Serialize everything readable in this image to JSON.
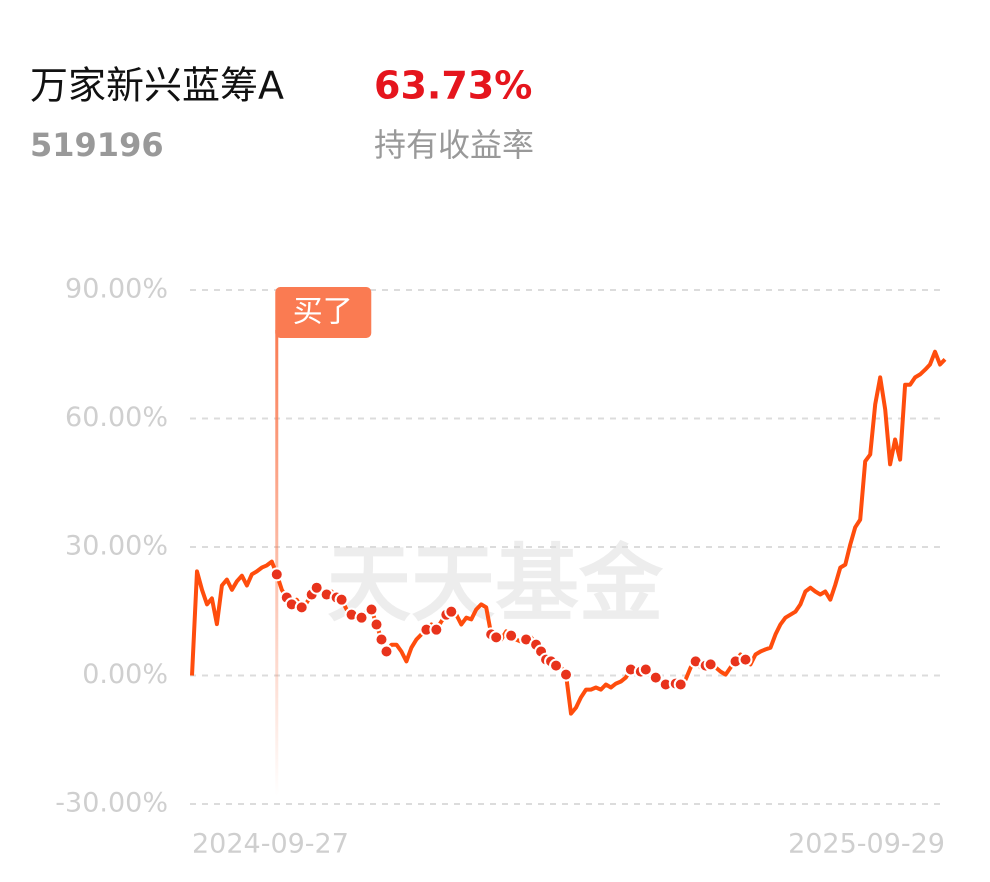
{
  "header": {
    "fund_name": "万家新兴蓝筹A",
    "return_value": "63.73%",
    "fund_code": "519196",
    "return_label": "持有收益率"
  },
  "chart_data": {
    "type": "line",
    "watermark": "天天基金",
    "categories": [
      "2024-09-27",
      null,
      null,
      null,
      null,
      null,
      null,
      null,
      null,
      null,
      null,
      null,
      null,
      null,
      null,
      null,
      null,
      null,
      null,
      null,
      null,
      null,
      null,
      null,
      null,
      null,
      null,
      null,
      null,
      null,
      null,
      null,
      null,
      null,
      null,
      null,
      null,
      null,
      null,
      null,
      null,
      null,
      null,
      null,
      null,
      null,
      null,
      null,
      null,
      null,
      null,
      null,
      null,
      null,
      null,
      null,
      null,
      null,
      null,
      null,
      null,
      null,
      null,
      null,
      null,
      null,
      null,
      null,
      null,
      null,
      null,
      null,
      null,
      null,
      null,
      null,
      null,
      null,
      null,
      null,
      null,
      null,
      null,
      null,
      null,
      null,
      null,
      null,
      null,
      null,
      null,
      null,
      null,
      null,
      null,
      null,
      null,
      null,
      null,
      null,
      null,
      null,
      null,
      null,
      null,
      null,
      null,
      null,
      null,
      null,
      null,
      null,
      null,
      null,
      null,
      null,
      null,
      null,
      null,
      null,
      null,
      null,
      null,
      null,
      null,
      null,
      null,
      null,
      null,
      null,
      null,
      null,
      null,
      null,
      null,
      null,
      null,
      null,
      null,
      null,
      null,
      null,
      null,
      null,
      null,
      null,
      null,
      null,
      null,
      null,
      null,
      "2025-09-29"
    ],
    "series": [
      {
        "color": "#ff4d0d",
        "values": [
          0,
          24.3,
          20,
          16.6,
          18,
          12,
          21,
          22.4,
          20,
          22,
          23.3,
          21,
          23.6,
          24.3,
          25.2,
          25.7,
          26.6,
          23.6,
          20,
          18.2,
          16.6,
          17.7,
          15.9,
          17,
          18.9,
          20.5,
          20,
          18.9,
          19.6,
          18.2,
          17.7,
          15.4,
          14.2,
          13.1,
          13.5,
          14.9,
          15.4,
          11.9,
          8.4,
          5.6,
          7.2,
          7.2,
          5.6,
          3.3,
          6.5,
          8.4,
          9.6,
          10.7,
          11.9,
          10.7,
          12.6,
          14.2,
          14.9,
          14.2,
          11.9,
          13.5,
          13.1,
          15.4,
          16.6,
          15.9,
          9.6,
          8.9,
          8.4,
          10.3,
          9.3,
          8.4,
          7.9,
          8.4,
          8.9,
          7.2,
          5.6,
          3.7,
          3.3,
          2.3,
          1.9,
          0.2,
          -8.9,
          -7.5,
          -5.1,
          -3.3,
          -3.3,
          -2.8,
          -3.3,
          -2.1,
          -2.8,
          -1.9,
          -1.4,
          -0.5,
          1.4,
          1.9,
          0.9,
          1.4,
          0.2,
          -0.5,
          -1.4,
          -2.1,
          -2.3,
          -1.9,
          -2.1,
          -0.9,
          1.9,
          3.3,
          1.9,
          2.3,
          2.6,
          1.9,
          0.9,
          0.2,
          1.9,
          3.3,
          4.9,
          3.7,
          2.6,
          4.9,
          5.6,
          6.1,
          6.5,
          9.6,
          11.9,
          13.5,
          14.2,
          14.9,
          16.6,
          19.6,
          20.5,
          19.6,
          18.9,
          19.6,
          17.7,
          21.2,
          25.2,
          25.9,
          30.6,
          34.6,
          36.4,
          50,
          51.6,
          63.3,
          69.6,
          62.1,
          49.3,
          55.1,
          50.4,
          67.9,
          67.9,
          69.6,
          70.3,
          71.4,
          72.6,
          75.6,
          72.6,
          73.8
        ]
      }
    ],
    "trades": {
      "color": "#e8331c",
      "x": [
        17,
        19,
        20,
        22,
        24,
        25,
        27,
        29,
        30,
        32,
        34,
        36,
        37,
        38,
        39,
        47,
        49,
        51,
        52,
        60,
        61,
        64,
        67,
        69,
        70,
        71,
        72,
        73,
        75,
        88,
        90,
        91,
        93,
        95,
        97,
        98,
        101,
        103,
        104,
        109,
        111
      ],
      "values": [
        23.6,
        18.2,
        16.6,
        15.9,
        18.9,
        20.5,
        18.9,
        18.2,
        17.7,
        14.2,
        13.5,
        15.4,
        11.9,
        8.4,
        5.6,
        10.7,
        10.7,
        14.2,
        14.9,
        9.6,
        8.9,
        9.3,
        8.4,
        7.2,
        5.6,
        3.7,
        3.3,
        2.3,
        0.2,
        1.4,
        0.9,
        1.4,
        -0.5,
        -2.1,
        -1.9,
        -2.1,
        3.3,
        2.3,
        2.6,
        3.3,
        3.7
      ]
    },
    "annotations": [
      {
        "text": "买了",
        "x": 17,
        "color": "#fa7b52"
      }
    ],
    "ylim": [
      -30,
      90
    ],
    "yticks": [
      {
        "value": -30,
        "label": "-30.00%"
      },
      {
        "value": 0,
        "label": "0.00%"
      },
      {
        "value": 30,
        "label": "30.00%"
      },
      {
        "value": 60,
        "label": "60.00%"
      },
      {
        "value": 90,
        "label": "90.00%"
      }
    ],
    "grid": true
  }
}
